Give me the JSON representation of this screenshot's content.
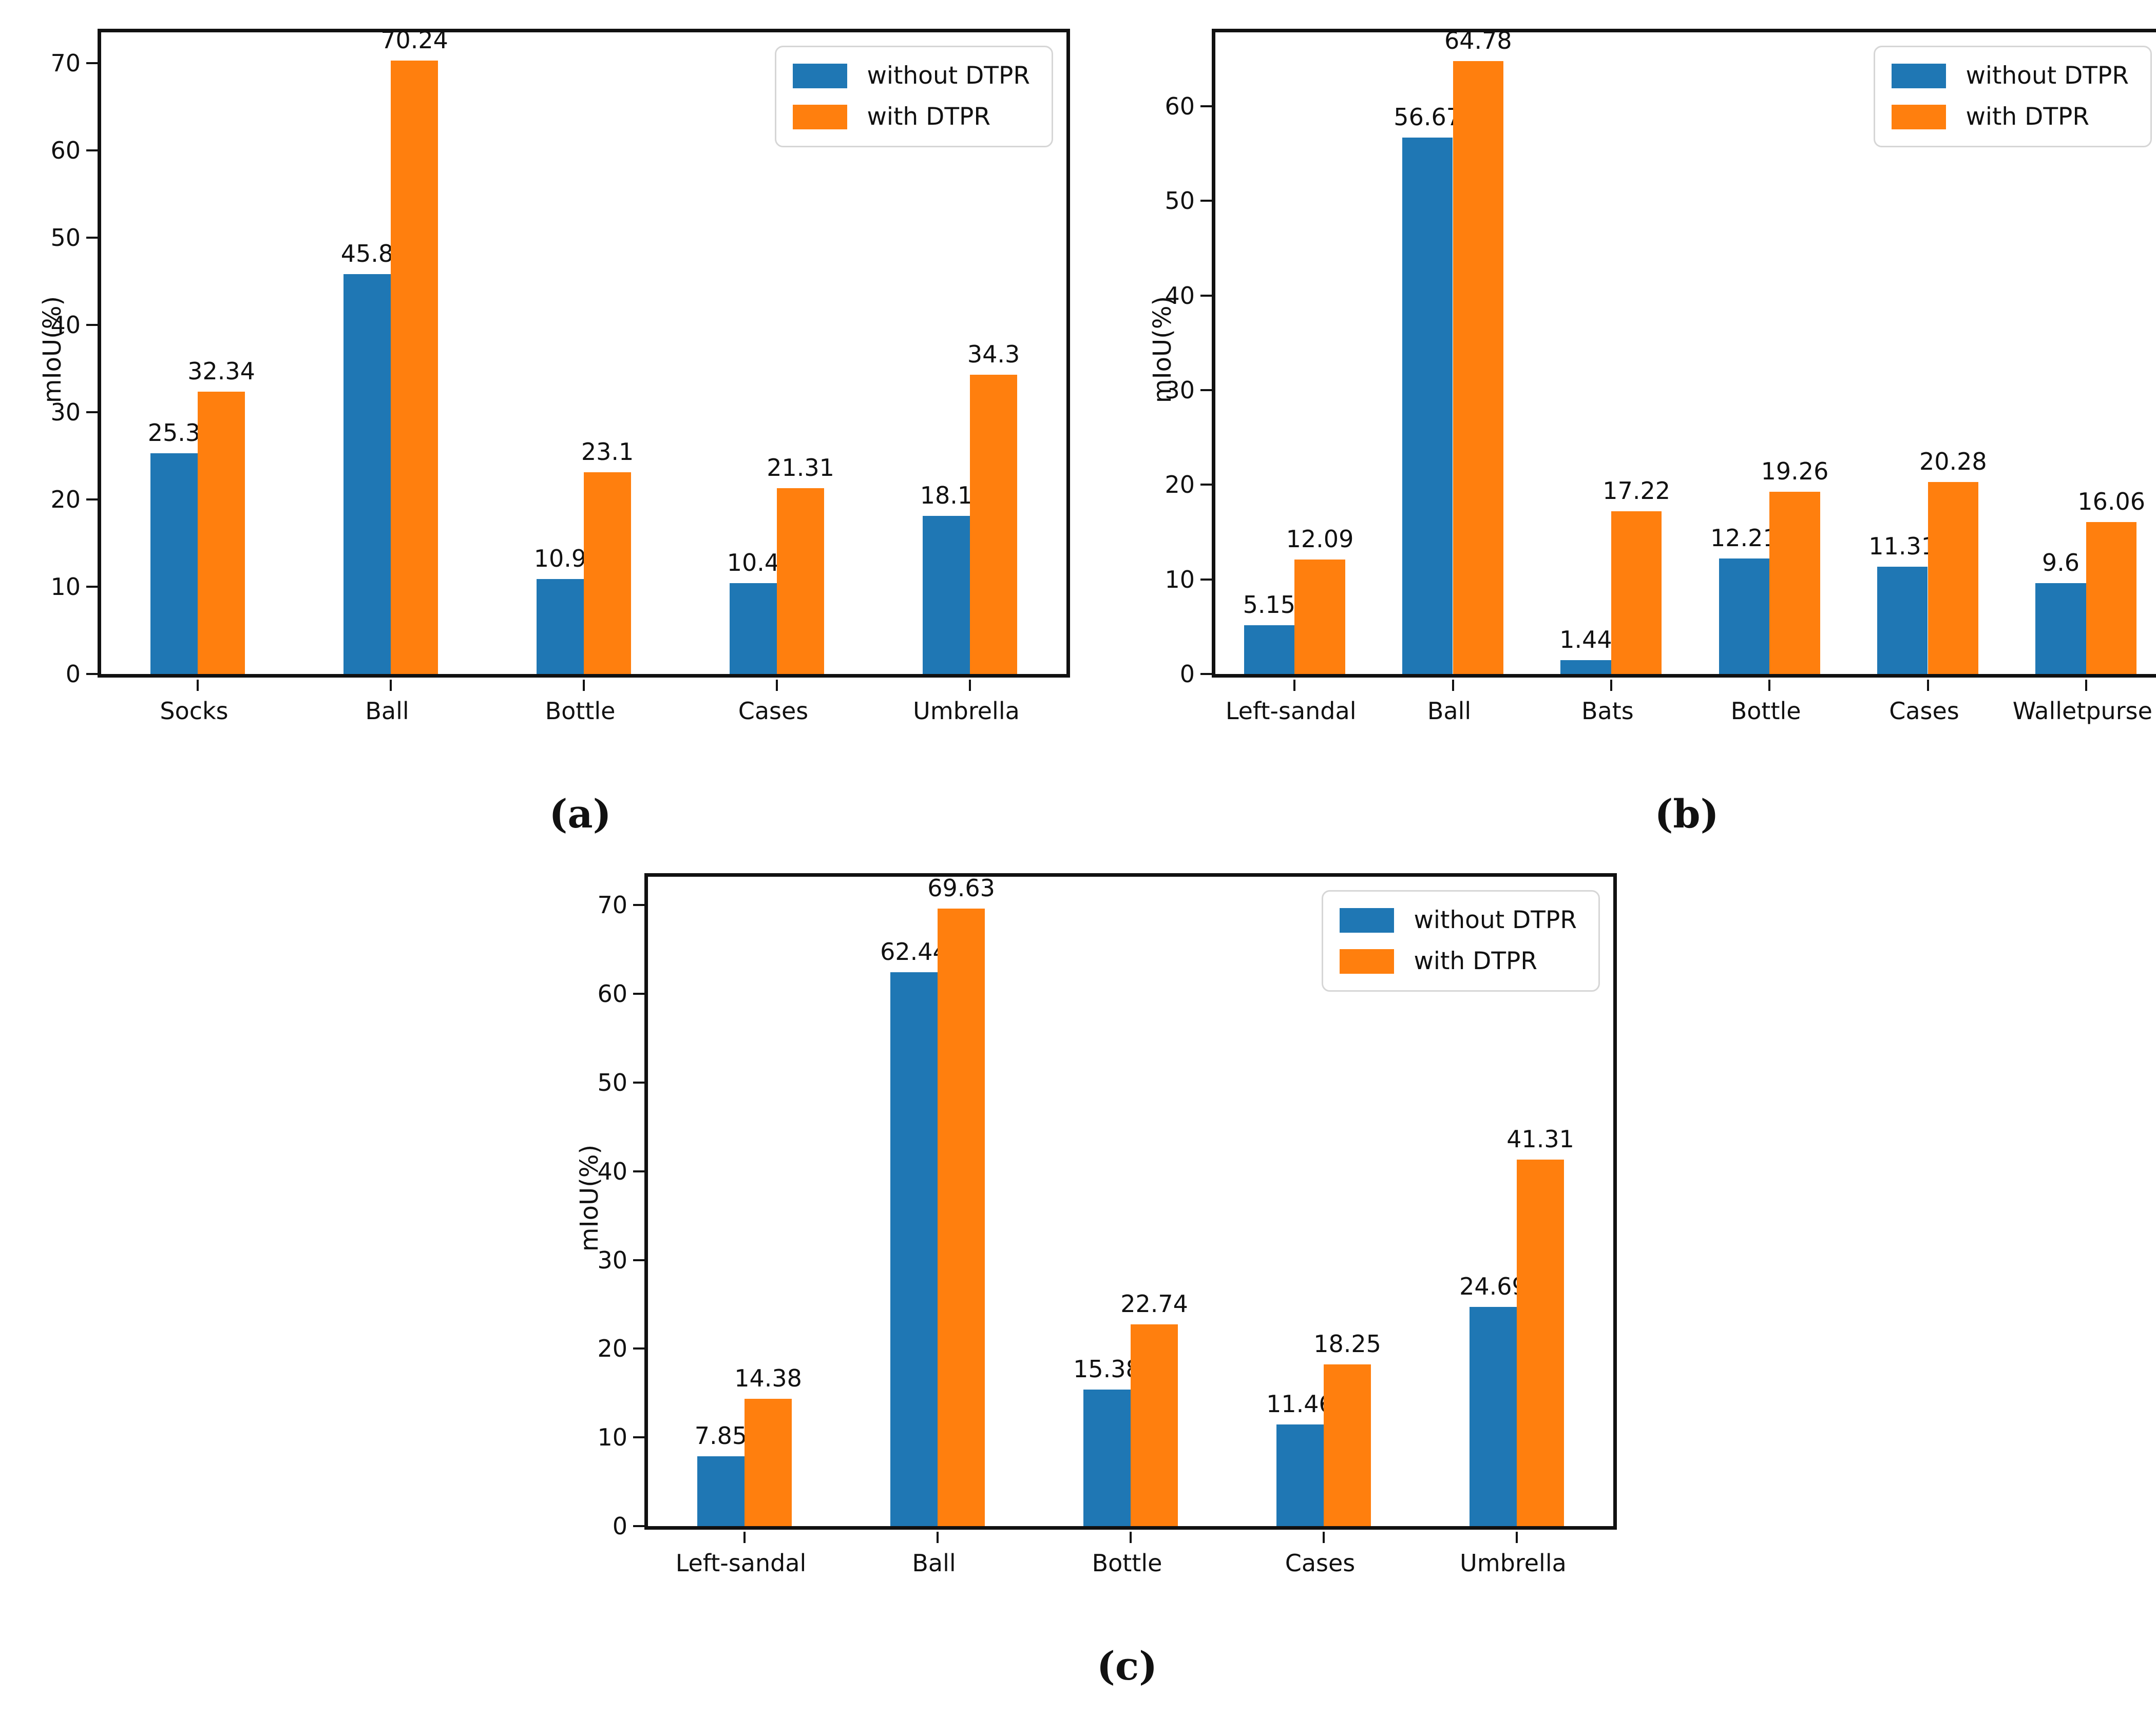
{
  "figure": {
    "ylabel": "mIoU(%)",
    "series_colors": {
      "without_dtpr": "#1f77b4",
      "with_dtpr": "#ff7f0e"
    },
    "legend_labels": [
      "without DTPR",
      "with DTPR"
    ]
  },
  "chart_data": [
    {
      "id": "a",
      "type": "bar",
      "caption": "(a)",
      "ylabel": "mIoU(%)",
      "xlabel": "",
      "title": "",
      "categories": [
        "Socks",
        "Ball",
        "Bottle",
        "Cases",
        "Umbrella"
      ],
      "series": [
        {
          "name": "without DTPR",
          "color": "#1f77b4",
          "values": [
            25.3,
            45.8,
            10.9,
            10.4,
            18.1
          ]
        },
        {
          "name": "with DTPR",
          "color": "#ff7f0e",
          "values": [
            32.34,
            70.24,
            23.1,
            21.31,
            34.3
          ]
        }
      ],
      "yticks": [
        0,
        10,
        20,
        30,
        40,
        50,
        60,
        70
      ],
      "ylim": [
        0,
        73.5
      ],
      "grid": false,
      "legend_position": "upper right"
    },
    {
      "id": "b",
      "type": "bar",
      "caption": "(b)",
      "ylabel": "mIoU(%)",
      "xlabel": "",
      "title": "",
      "categories": [
        "Left-sandal",
        "Ball",
        "Bats",
        "Bottle",
        "Cases",
        "Walletpurse"
      ],
      "series": [
        {
          "name": "without DTPR",
          "color": "#1f77b4",
          "values": [
            5.15,
            56.67,
            1.44,
            12.21,
            11.31,
            9.6
          ]
        },
        {
          "name": "with DTPR",
          "color": "#ff7f0e",
          "values": [
            12.09,
            64.78,
            17.22,
            19.26,
            20.28,
            16.06
          ]
        }
      ],
      "yticks": [
        0,
        10,
        20,
        30,
        40,
        50,
        60
      ],
      "ylim": [
        0,
        67.8
      ],
      "grid": false,
      "legend_position": "upper right"
    },
    {
      "id": "c",
      "type": "bar",
      "caption": "(c)",
      "ylabel": "mIoU(%)",
      "xlabel": "",
      "title": "",
      "categories": [
        "Left-sandal",
        "Ball",
        "Bottle",
        "Cases",
        "Umbrella"
      ],
      "series": [
        {
          "name": "without DTPR",
          "color": "#1f77b4",
          "values": [
            7.85,
            62.44,
            15.38,
            11.46,
            24.69
          ]
        },
        {
          "name": "with DTPR",
          "color": "#ff7f0e",
          "values": [
            14.38,
            69.63,
            22.74,
            18.25,
            41.31
          ]
        }
      ],
      "yticks": [
        0,
        10,
        20,
        30,
        40,
        50,
        60,
        70
      ],
      "ylim": [
        0,
        73.2
      ],
      "grid": false,
      "legend_position": "upper right"
    }
  ]
}
